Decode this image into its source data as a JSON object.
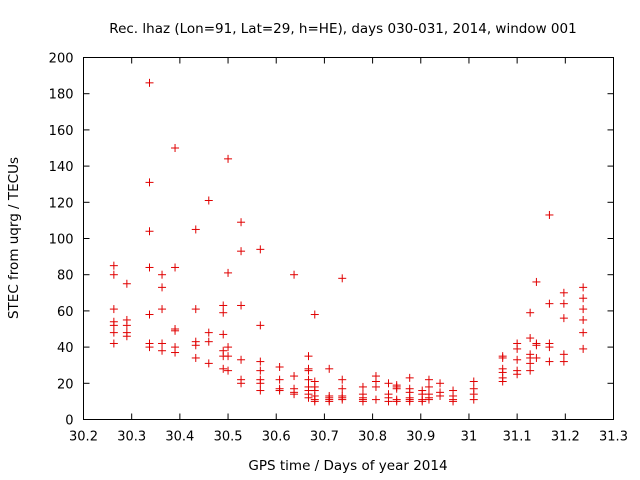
{
  "chart_data": {
    "type": "scatter",
    "title": "Rec. lhaz (Lon=91, Lat=29, h=HE), days 030-031, 2014, window 001",
    "xlabel": "GPS time / Days of year 2014",
    "ylabel": "STEC from uqrg / TECUs",
    "xlim": [
      30.2,
      31.3
    ],
    "ylim": [
      0,
      200
    ],
    "x_ticks": [
      30.2,
      30.3,
      30.4,
      30.5,
      30.6,
      30.7,
      30.8,
      30.9,
      31.0,
      31.1,
      31.2,
      31.3
    ],
    "x_tick_labels": [
      "30.2",
      "30.3",
      "30.4",
      "30.5",
      "30.6",
      "30.7",
      "30.8",
      "30.9",
      "31",
      "31.1",
      "31.2",
      "31.3"
    ],
    "y_ticks": [
      0,
      20,
      40,
      60,
      80,
      100,
      120,
      140,
      160,
      180,
      200
    ],
    "y_tick_labels": [
      "0",
      "20",
      "40",
      "60",
      "80",
      "100",
      "120",
      "140",
      "160",
      "180",
      "200"
    ],
    "grid": false,
    "marker": "+",
    "marker_color": "#e00000",
    "series": [
      {
        "name": "STEC",
        "points": [
          [
            30.263,
            85
          ],
          [
            30.263,
            80
          ],
          [
            30.263,
            61
          ],
          [
            30.263,
            54
          ],
          [
            30.263,
            52
          ],
          [
            30.263,
            48
          ],
          [
            30.263,
            42
          ],
          [
            30.29,
            75
          ],
          [
            30.29,
            55
          ],
          [
            30.29,
            52
          ],
          [
            30.29,
            48
          ],
          [
            30.29,
            46
          ],
          [
            30.337,
            186
          ],
          [
            30.337,
            131
          ],
          [
            30.337,
            104
          ],
          [
            30.337,
            84
          ],
          [
            30.337,
            58
          ],
          [
            30.337,
            42
          ],
          [
            30.337,
            40
          ],
          [
            30.363,
            80
          ],
          [
            30.363,
            73
          ],
          [
            30.363,
            61
          ],
          [
            30.363,
            42
          ],
          [
            30.363,
            38
          ],
          [
            30.39,
            150
          ],
          [
            30.39,
            84
          ],
          [
            30.39,
            50
          ],
          [
            30.39,
            49
          ],
          [
            30.39,
            40
          ],
          [
            30.39,
            37
          ],
          [
            30.433,
            105
          ],
          [
            30.433,
            61
          ],
          [
            30.433,
            43
          ],
          [
            30.433,
            41
          ],
          [
            30.433,
            34
          ],
          [
            30.46,
            121
          ],
          [
            30.46,
            48
          ],
          [
            30.46,
            43
          ],
          [
            30.46,
            31
          ],
          [
            30.49,
            63
          ],
          [
            30.49,
            59
          ],
          [
            30.49,
            47
          ],
          [
            30.49,
            38
          ],
          [
            30.49,
            35
          ],
          [
            30.49,
            28
          ],
          [
            30.5,
            144
          ],
          [
            30.5,
            81
          ],
          [
            30.5,
            40
          ],
          [
            30.5,
            35
          ],
          [
            30.5,
            27
          ],
          [
            30.527,
            109
          ],
          [
            30.527,
            93
          ],
          [
            30.527,
            63
          ],
          [
            30.527,
            33
          ],
          [
            30.527,
            22
          ],
          [
            30.527,
            20
          ],
          [
            30.567,
            94
          ],
          [
            30.567,
            52
          ],
          [
            30.567,
            32
          ],
          [
            30.567,
            27
          ],
          [
            30.567,
            22
          ],
          [
            30.567,
            20
          ],
          [
            30.567,
            16
          ],
          [
            30.607,
            29
          ],
          [
            30.607,
            22
          ],
          [
            30.607,
            17
          ],
          [
            30.607,
            16
          ],
          [
            30.637,
            80
          ],
          [
            30.637,
            24
          ],
          [
            30.637,
            17
          ],
          [
            30.637,
            15
          ],
          [
            30.637,
            14
          ],
          [
            30.667,
            35
          ],
          [
            30.667,
            28
          ],
          [
            30.667,
            27
          ],
          [
            30.667,
            22
          ],
          [
            30.667,
            18
          ],
          [
            30.667,
            16
          ],
          [
            30.667,
            14
          ],
          [
            30.667,
            12
          ],
          [
            30.68,
            58
          ],
          [
            30.68,
            21
          ],
          [
            30.68,
            18
          ],
          [
            30.68,
            16
          ],
          [
            30.68,
            13
          ],
          [
            30.68,
            11
          ],
          [
            30.68,
            10
          ],
          [
            30.71,
            28
          ],
          [
            30.71,
            13
          ],
          [
            30.71,
            12
          ],
          [
            30.71,
            11
          ],
          [
            30.71,
            10
          ],
          [
            30.737,
            78
          ],
          [
            30.737,
            22
          ],
          [
            30.737,
            17
          ],
          [
            30.737,
            13
          ],
          [
            30.737,
            12
          ],
          [
            30.737,
            11
          ],
          [
            30.78,
            18
          ],
          [
            30.78,
            14
          ],
          [
            30.78,
            12
          ],
          [
            30.78,
            11
          ],
          [
            30.78,
            10
          ],
          [
            30.807,
            24
          ],
          [
            30.807,
            21
          ],
          [
            30.807,
            18
          ],
          [
            30.807,
            11
          ],
          [
            30.833,
            20
          ],
          [
            30.833,
            14
          ],
          [
            30.833,
            12
          ],
          [
            30.833,
            10
          ],
          [
            30.85,
            19
          ],
          [
            30.85,
            18
          ],
          [
            30.85,
            17
          ],
          [
            30.85,
            11
          ],
          [
            30.85,
            10
          ],
          [
            30.877,
            23
          ],
          [
            30.877,
            17
          ],
          [
            30.877,
            15
          ],
          [
            30.877,
            12
          ],
          [
            30.877,
            11
          ],
          [
            30.877,
            10
          ],
          [
            30.903,
            16
          ],
          [
            30.903,
            14
          ],
          [
            30.903,
            11
          ],
          [
            30.903,
            10
          ],
          [
            30.917,
            22
          ],
          [
            30.917,
            18
          ],
          [
            30.917,
            14
          ],
          [
            30.917,
            12
          ],
          [
            30.917,
            11
          ],
          [
            30.94,
            20
          ],
          [
            30.94,
            15
          ],
          [
            30.94,
            13
          ],
          [
            30.967,
            16
          ],
          [
            30.967,
            13
          ],
          [
            30.967,
            11
          ],
          [
            30.967,
            10
          ],
          [
            31.01,
            21
          ],
          [
            31.01,
            17
          ],
          [
            31.01,
            14
          ],
          [
            31.01,
            11
          ],
          [
            31.07,
            35
          ],
          [
            31.07,
            34
          ],
          [
            31.07,
            28
          ],
          [
            31.07,
            26
          ],
          [
            31.07,
            23
          ],
          [
            31.07,
            21
          ],
          [
            31.1,
            42
          ],
          [
            31.1,
            39
          ],
          [
            31.1,
            33
          ],
          [
            31.1,
            27
          ],
          [
            31.1,
            25
          ],
          [
            31.127,
            59
          ],
          [
            31.127,
            45
          ],
          [
            31.127,
            36
          ],
          [
            31.127,
            34
          ],
          [
            31.127,
            31
          ],
          [
            31.127,
            27
          ],
          [
            31.14,
            76
          ],
          [
            31.14,
            42
          ],
          [
            31.14,
            41
          ],
          [
            31.14,
            34
          ],
          [
            31.167,
            113
          ],
          [
            31.167,
            64
          ],
          [
            31.167,
            42
          ],
          [
            31.167,
            40
          ],
          [
            31.167,
            32
          ],
          [
            31.197,
            70
          ],
          [
            31.197,
            64
          ],
          [
            31.197,
            56
          ],
          [
            31.197,
            36
          ],
          [
            31.197,
            32
          ],
          [
            31.237,
            73
          ],
          [
            31.237,
            67
          ],
          [
            31.237,
            61
          ],
          [
            31.237,
            55
          ],
          [
            31.237,
            48
          ],
          [
            31.237,
            39
          ]
        ]
      }
    ]
  }
}
